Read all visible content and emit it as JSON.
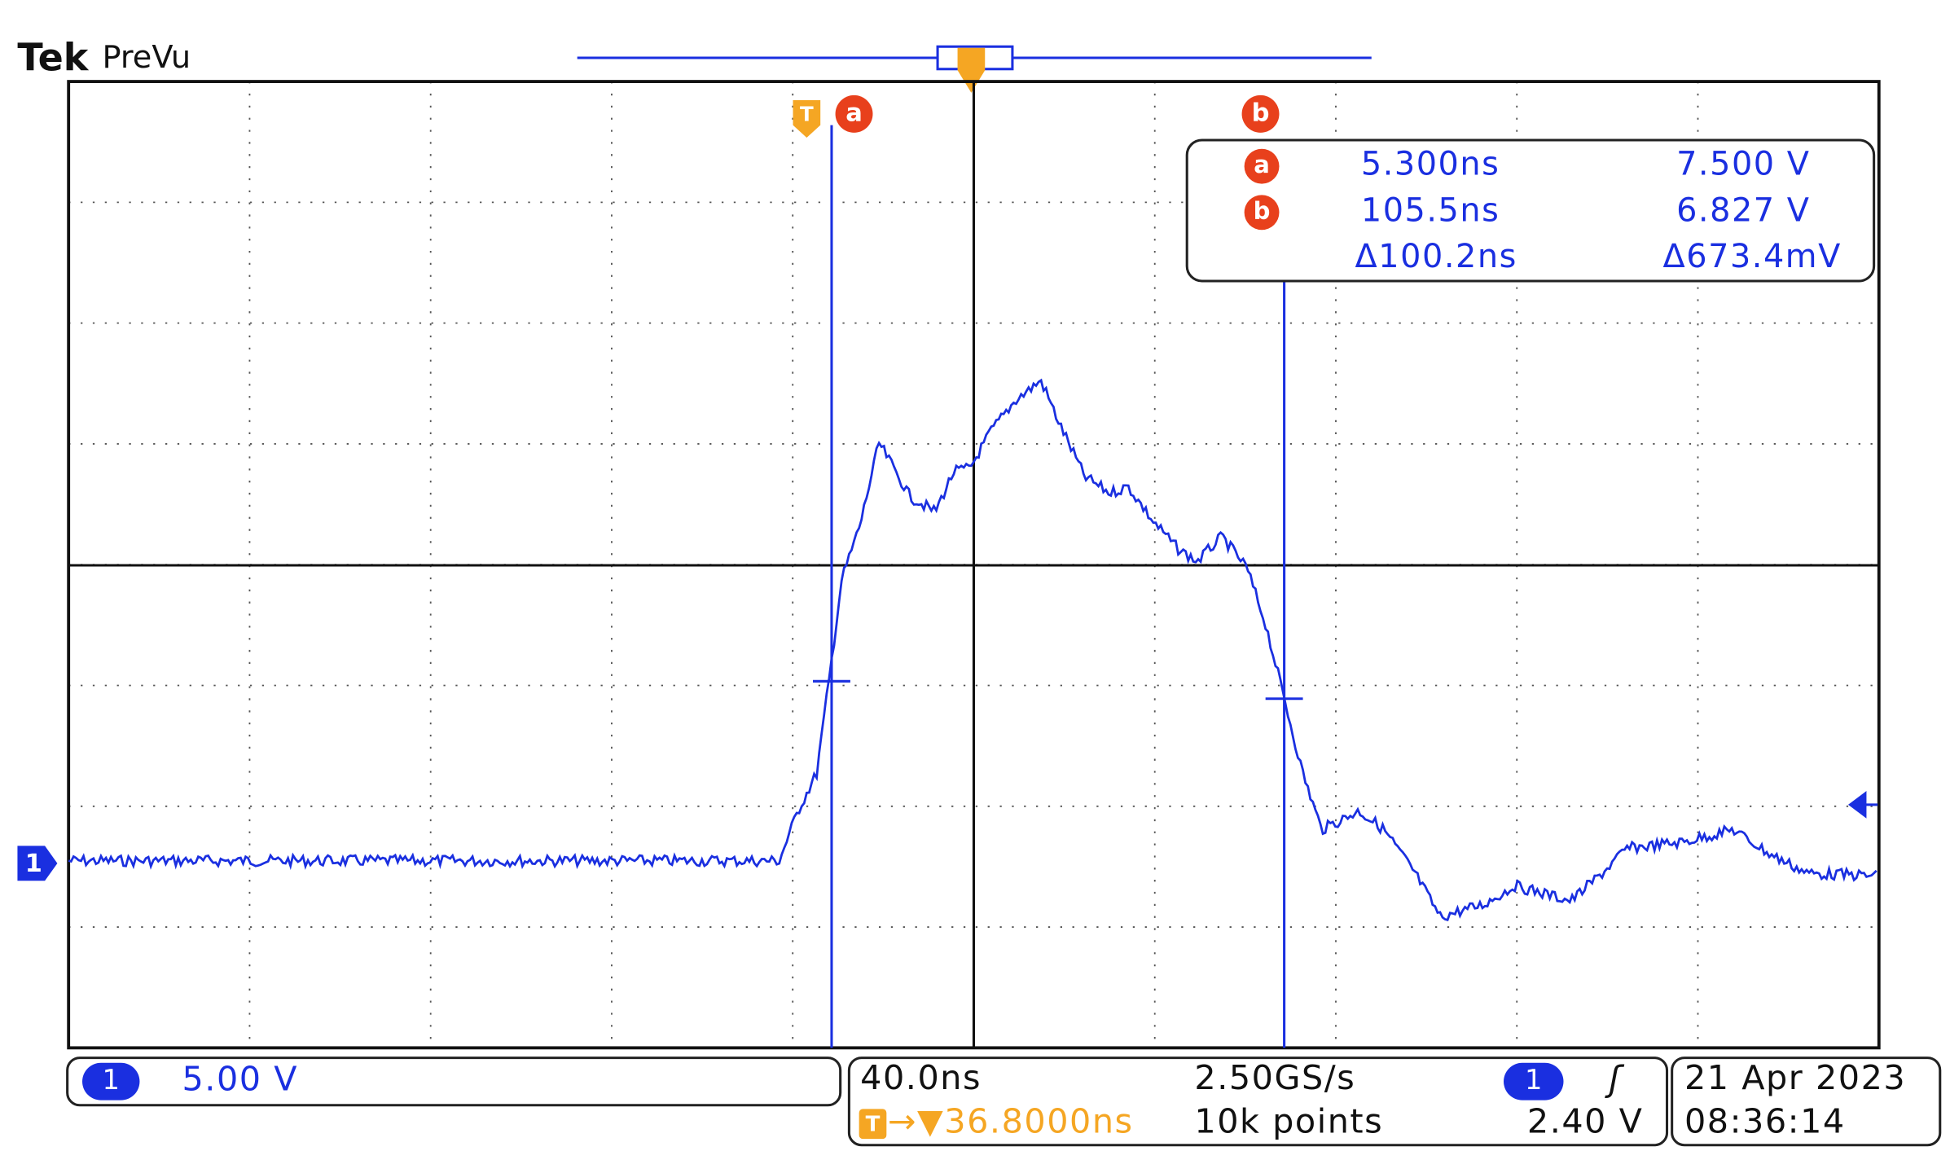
{
  "header": {
    "brand": "Tek",
    "mode": "PreVu"
  },
  "markers": {
    "trigger": "T",
    "cursor_a": "a",
    "cursor_b": "b",
    "channel": "1"
  },
  "readout": {
    "a": {
      "label": "a",
      "time": "5.300ns",
      "voltage": "7.500 V"
    },
    "b": {
      "label": "b",
      "time": "105.5ns",
      "voltage": "6.827 V"
    },
    "delta": {
      "time": "Δ100.2ns",
      "voltage": "Δ673.4mV"
    }
  },
  "status": {
    "channel": {
      "number": "1",
      "scale": "5.00 V"
    },
    "horizontal": {
      "timebase": "40.0ns",
      "trigger_icon": "T",
      "trigger_position": "→▼36.8000ns",
      "sample_rate": "2.50GS/s",
      "record_length": "10k points"
    },
    "trigger": {
      "channel": "1",
      "slope": "ʃ",
      "level": "2.40 V"
    },
    "clock": {
      "date": "21 Apr 2023",
      "time": "08:36:14"
    }
  }
}
